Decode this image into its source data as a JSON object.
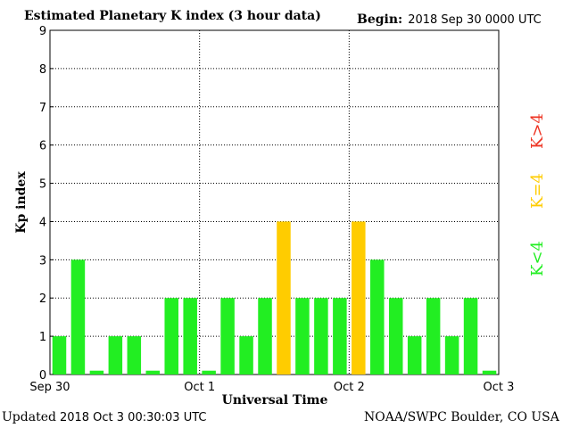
{
  "header": {
    "title": "Estimated Planetary K index (3 hour data)",
    "begin_label": "Begin:",
    "begin_value": "2018 Sep 30 0000 UTC"
  },
  "footer": {
    "updated_label": "Updated",
    "updated_value": "2018 Oct  3 00:30:03 UTC",
    "credit": "NOAA/SWPC Boulder, CO USA"
  },
  "legend": {
    "below": "K<4",
    "equal": "K=4",
    "above": "K>4"
  },
  "colors": {
    "below": "#22ee22",
    "equal": "#ffcc00",
    "above": "#ee3322"
  },
  "chart_data": {
    "type": "bar",
    "title": "Estimated Planetary K index (3 hour data)",
    "xlabel": "Universal Time",
    "ylabel": "Kp index",
    "ylim": [
      0,
      9
    ],
    "yticks": [
      0,
      1,
      2,
      3,
      4,
      5,
      6,
      7,
      8,
      9
    ],
    "x_tick_labels": [
      "Sep 30",
      "Oct 1",
      "Oct 2",
      "Oct 3"
    ],
    "grid": true,
    "values": [
      1,
      3,
      0,
      1,
      1,
      0,
      2,
      2,
      0,
      2,
      1,
      2,
      4,
      2,
      2,
      2,
      4,
      3,
      2,
      1,
      2,
      1,
      2,
      0
    ]
  }
}
